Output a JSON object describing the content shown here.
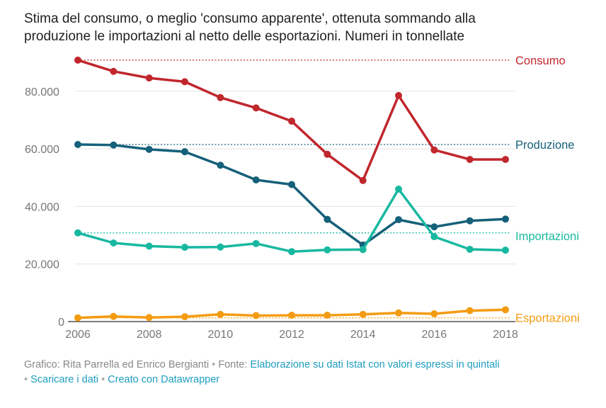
{
  "title": {
    "line1": "Stima del consumo, o meglio 'consumo apparente', ottenuta sommando alla",
    "line2": "produzione le importazioni al netto delle esportazioni. Numeri in tonnellate"
  },
  "chart_data": {
    "type": "line",
    "title": "Stima del consumo, o meglio 'consumo apparente', ottenuta sommando alla produzione le importazioni al netto delle esportazioni. Numeri in tonnellate",
    "xlabel": "",
    "ylabel": "",
    "x": [
      2006,
      2007,
      2008,
      2009,
      2010,
      2011,
      2012,
      2013,
      2014,
      2015,
      2016,
      2017,
      2018
    ],
    "xticks": [
      "2006",
      "2008",
      "2010",
      "2012",
      "2014",
      "2016",
      "2018"
    ],
    "yticks": [
      "0",
      "20.000",
      "40.000",
      "60.000",
      "80.000"
    ],
    "ylim": [
      0,
      92000
    ],
    "grid": true,
    "series": [
      {
        "name": "Consumo",
        "color": "#c0272d",
        "values": [
          90800,
          86900,
          84600,
          83300,
          77800,
          74200,
          69600,
          58100,
          49000,
          78500,
          59600,
          56300,
          56300
        ],
        "reference": 90800
      },
      {
        "name": "Produzione",
        "color": "#15607a",
        "values": [
          61500,
          61300,
          59800,
          59000,
          54300,
          49200,
          47600,
          35500,
          26600,
          35400,
          32900,
          35000,
          35600
        ],
        "reference": 61500
      },
      {
        "name": "Importazioni",
        "color": "#18b8a0",
        "values": [
          30800,
          27300,
          26200,
          25800,
          25900,
          27100,
          24300,
          24900,
          25000,
          46000,
          29500,
          25100,
          24800
        ],
        "reference": 30800
      },
      {
        "name": "Esportazioni",
        "color": "#f39c12",
        "values": [
          1300,
          1800,
          1400,
          1700,
          2500,
          2100,
          2200,
          2200,
          2500,
          3000,
          2700,
          3800,
          4100
        ],
        "reference": 1300
      }
    ]
  },
  "footer": {
    "credit": "Grafico: Rita Parrella ed Enrico Bergianti",
    "source_label": "Fonte:",
    "source_link": "Elaborazione su dati Istat con valori espressi in quintali",
    "separator": "•",
    "download_link": "Scaricare i dati",
    "created_link": "Creato con Datawrapper"
  }
}
